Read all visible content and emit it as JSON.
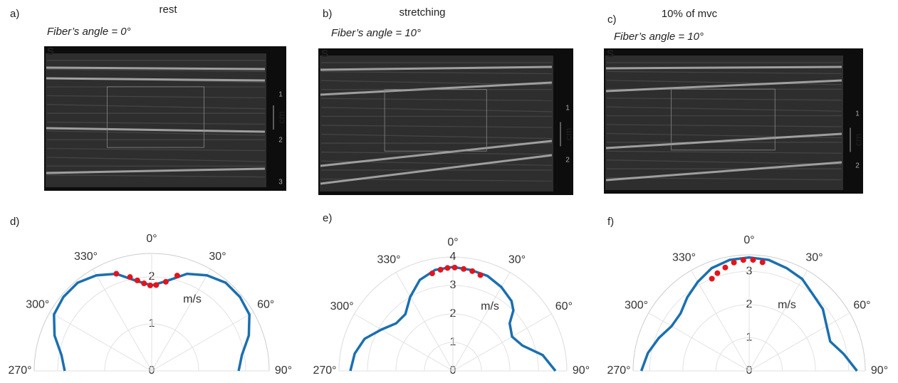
{
  "images": [
    {
      "label": "a)",
      "title": "rest",
      "annotation": "Fiber’s angle = 0°",
      "marker": "S",
      "unit": "cm",
      "depth_ticks": [
        "1",
        "2",
        "3"
      ]
    },
    {
      "label": "b)",
      "title": "stretching",
      "annotation": "Fiber’s angle = 10°",
      "marker": "S",
      "unit": "cm",
      "depth_ticks": [
        "1",
        "2"
      ]
    },
    {
      "label": "c)",
      "title": "10% of mvc",
      "annotation": "Fiber’s angle = 10°",
      "marker": "S",
      "unit": "cm",
      "depth_ticks": [
        "1",
        "2"
      ]
    }
  ],
  "chart_data": [
    {
      "type": "polar",
      "label": "d)",
      "r_label": "m/s",
      "rlim": [
        0,
        2.5
      ],
      "rticks": [
        0,
        1,
        2
      ],
      "thetaticks": [
        {
          "value": -90,
          "label": "270°"
        },
        {
          "value": -60,
          "label": "300°"
        },
        {
          "value": -30,
          "label": "330°"
        },
        {
          "value": 0,
          "label": "0°"
        },
        {
          "value": 30,
          "label": "30°"
        },
        {
          "value": 60,
          "label": "60°"
        },
        {
          "value": 90,
          "label": "90°"
        }
      ],
      "series": [
        {
          "kind": "line",
          "color": "#1b6fb0",
          "theta": [
            -90,
            -80,
            -70,
            -60,
            -50,
            -40,
            -30,
            -20,
            -10,
            0,
            10,
            20,
            30,
            40,
            50,
            60,
            70,
            80,
            90
          ],
          "values": [
            1.85,
            1.95,
            2.2,
            2.4,
            2.45,
            2.45,
            2.35,
            2.2,
            1.95,
            1.82,
            1.95,
            2.2,
            2.35,
            2.45,
            2.45,
            2.4,
            2.2,
            1.95,
            1.85
          ]
        },
        {
          "kind": "points",
          "color": "#e3141c",
          "theta": [
            -20,
            -13,
            -9,
            -5,
            -1,
            3,
            9,
            15
          ],
          "values": [
            2.2,
            2.05,
            1.95,
            1.87,
            1.82,
            1.83,
            1.92,
            2.1
          ]
        }
      ]
    },
    {
      "type": "polar",
      "label": "e)",
      "r_label": "m/s",
      "rlim": [
        0,
        4
      ],
      "rticks": [
        0,
        1,
        2,
        3,
        4
      ],
      "thetaticks": [
        {
          "value": -90,
          "label": "270°"
        },
        {
          "value": -60,
          "label": "300°"
        },
        {
          "value": -30,
          "label": "330°"
        },
        {
          "value": 0,
          "label": "0°"
        },
        {
          "value": 30,
          "label": "30°"
        },
        {
          "value": 60,
          "label": "60°"
        },
        {
          "value": 90,
          "label": "90°"
        }
      ],
      "series": [
        {
          "kind": "line",
          "color": "#1b6fb0",
          "theta": [
            -90,
            -80,
            -70,
            -60,
            -50,
            -40,
            -30,
            -20,
            -10,
            0,
            10,
            20,
            30,
            40,
            45,
            50,
            60,
            70,
            80,
            90
          ],
          "values": [
            3.6,
            3.5,
            3.3,
            2.9,
            2.6,
            2.6,
            3.0,
            3.4,
            3.6,
            3.65,
            3.6,
            3.55,
            3.4,
            3.2,
            3.0,
            2.6,
            2.4,
            2.6,
            3.2,
            3.6
          ]
        },
        {
          "kind": "points",
          "color": "#e3141c",
          "theta": [
            -12,
            -7,
            -3,
            1,
            6,
            11,
            16
          ],
          "values": [
            3.5,
            3.58,
            3.62,
            3.63,
            3.6,
            3.57,
            3.5
          ]
        }
      ]
    },
    {
      "type": "polar",
      "label": "f)",
      "r_label": "m/s",
      "rlim": [
        0,
        3.5
      ],
      "rticks": [
        0,
        1,
        2,
        3
      ],
      "thetaticks": [
        {
          "value": -90,
          "label": "270°"
        },
        {
          "value": -60,
          "label": "300°"
        },
        {
          "value": -30,
          "label": "330°"
        },
        {
          "value": 0,
          "label": "0°"
        },
        {
          "value": 30,
          "label": "30°"
        },
        {
          "value": 60,
          "label": "60°"
        },
        {
          "value": 90,
          "label": "90°"
        }
      ],
      "series": [
        {
          "kind": "line",
          "color": "#1b6fb0",
          "theta": [
            -90,
            -80,
            -70,
            -60,
            -50,
            -40,
            -30,
            -20,
            -10,
            0,
            10,
            20,
            30,
            40,
            50,
            60,
            70,
            80,
            90
          ],
          "values": [
            3.25,
            3.1,
            2.9,
            2.7,
            2.7,
            2.9,
            3.1,
            3.3,
            3.4,
            3.42,
            3.4,
            3.3,
            3.2,
            3.0,
            2.9,
            2.7,
            2.6,
            2.9,
            3.25
          ]
        },
        {
          "kind": "points",
          "color": "#e3141c",
          "theta": [
            -22,
            -18,
            -13,
            -8,
            -3,
            2,
            7
          ],
          "values": [
            3.0,
            3.1,
            3.2,
            3.3,
            3.35,
            3.35,
            3.3
          ]
        }
      ]
    }
  ]
}
